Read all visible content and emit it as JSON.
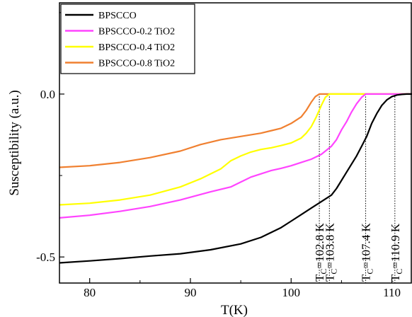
{
  "chart_data": {
    "type": "line",
    "title": "",
    "xlabel": "T(K)",
    "ylabel": "Susceptibility (a.u.)",
    "xlim": [
      77,
      112
    ],
    "ylim": [
      -0.58,
      0.28
    ],
    "xticks": [
      80,
      90,
      100,
      110
    ],
    "yticks": [
      0.0,
      -0.5
    ],
    "ytick_labels": [
      "0.0",
      "-0.5"
    ],
    "grid": false,
    "legend_position": "top-left",
    "series": [
      {
        "name": "BPSCCO",
        "color": "#000000",
        "x": [
          77,
          80,
          83,
          86,
          89,
          92,
          95,
          97,
          99,
          100,
          101,
          102,
          103,
          104,
          104.5,
          105,
          105.5,
          106,
          106.5,
          107,
          107.5,
          108,
          108.5,
          109,
          109.5,
          110,
          110.5,
          111,
          111.5,
          112
        ],
        "y": [
          -0.518,
          -0.512,
          -0.505,
          -0.497,
          -0.49,
          -0.478,
          -0.46,
          -0.44,
          -0.41,
          -0.39,
          -0.37,
          -0.35,
          -0.33,
          -0.31,
          -0.29,
          -0.265,
          -0.24,
          -0.215,
          -0.19,
          -0.16,
          -0.13,
          -0.09,
          -0.06,
          -0.035,
          -0.018,
          -0.008,
          -0.003,
          -0.001,
          0.0,
          0.0
        ]
      },
      {
        "name": "BPSCCO-0.2 TiO2",
        "color": "#ff44ff",
        "x": [
          77,
          80,
          83,
          86,
          89,
          92,
          94,
          95,
          96,
          97,
          98,
          99,
          100,
          101,
          102,
          103,
          104,
          104.5,
          105,
          105.5,
          106,
          106.5,
          107,
          107.4,
          108,
          110,
          112
        ],
        "y": [
          -0.38,
          -0.372,
          -0.36,
          -0.345,
          -0.325,
          -0.3,
          -0.285,
          -0.27,
          -0.255,
          -0.245,
          -0.235,
          -0.228,
          -0.22,
          -0.21,
          -0.2,
          -0.185,
          -0.16,
          -0.14,
          -0.11,
          -0.085,
          -0.055,
          -0.03,
          -0.01,
          0.0,
          0.0,
          0.0,
          0.0
        ]
      },
      {
        "name": "BPSCCO-0.4 TiO2",
        "color": "#ffff00",
        "x": [
          77,
          80,
          83,
          86,
          89,
          91,
          93,
          94,
          95,
          96,
          97,
          98,
          99,
          100,
          101,
          101.5,
          102,
          102.5,
          103,
          103.4,
          103.8,
          104.5,
          106,
          108,
          110,
          112
        ],
        "y": [
          -0.34,
          -0.335,
          -0.325,
          -0.31,
          -0.285,
          -0.26,
          -0.23,
          -0.205,
          -0.19,
          -0.178,
          -0.17,
          -0.165,
          -0.158,
          -0.15,
          -0.135,
          -0.12,
          -0.1,
          -0.07,
          -0.035,
          -0.01,
          0.0,
          0.0,
          0.0,
          0.0,
          0.0,
          0.0
        ]
      },
      {
        "name": "BPSCCO-0.8 TiO2",
        "color": "#f08030",
        "x": [
          77,
          80,
          83,
          86,
          89,
          91,
          93,
          95,
          97,
          99,
          100,
          101,
          101.5,
          102,
          102.4,
          102.8,
          103.3,
          104,
          106,
          108,
          110,
          112
        ],
        "y": [
          -0.225,
          -0.22,
          -0.21,
          -0.195,
          -0.175,
          -0.155,
          -0.14,
          -0.13,
          -0.12,
          -0.105,
          -0.09,
          -0.07,
          -0.05,
          -0.025,
          -0.008,
          0.0,
          0.0,
          0.0,
          0.0,
          0.0,
          0.0,
          0.0
        ]
      }
    ],
    "annotations": [
      {
        "sym": "T",
        "sub": "C",
        "rest": "=102.8 K",
        "x": 102.8
      },
      {
        "sym": "T",
        "sub": "C",
        "rest": "=103.8 K",
        "x": 103.8
      },
      {
        "sym": "T",
        "sub": "C",
        "rest": "=107.4 K",
        "x": 107.4
      },
      {
        "sym": "T",
        "sub": "C",
        "rest": "=110.9 K",
        "x": 110.3
      }
    ]
  }
}
